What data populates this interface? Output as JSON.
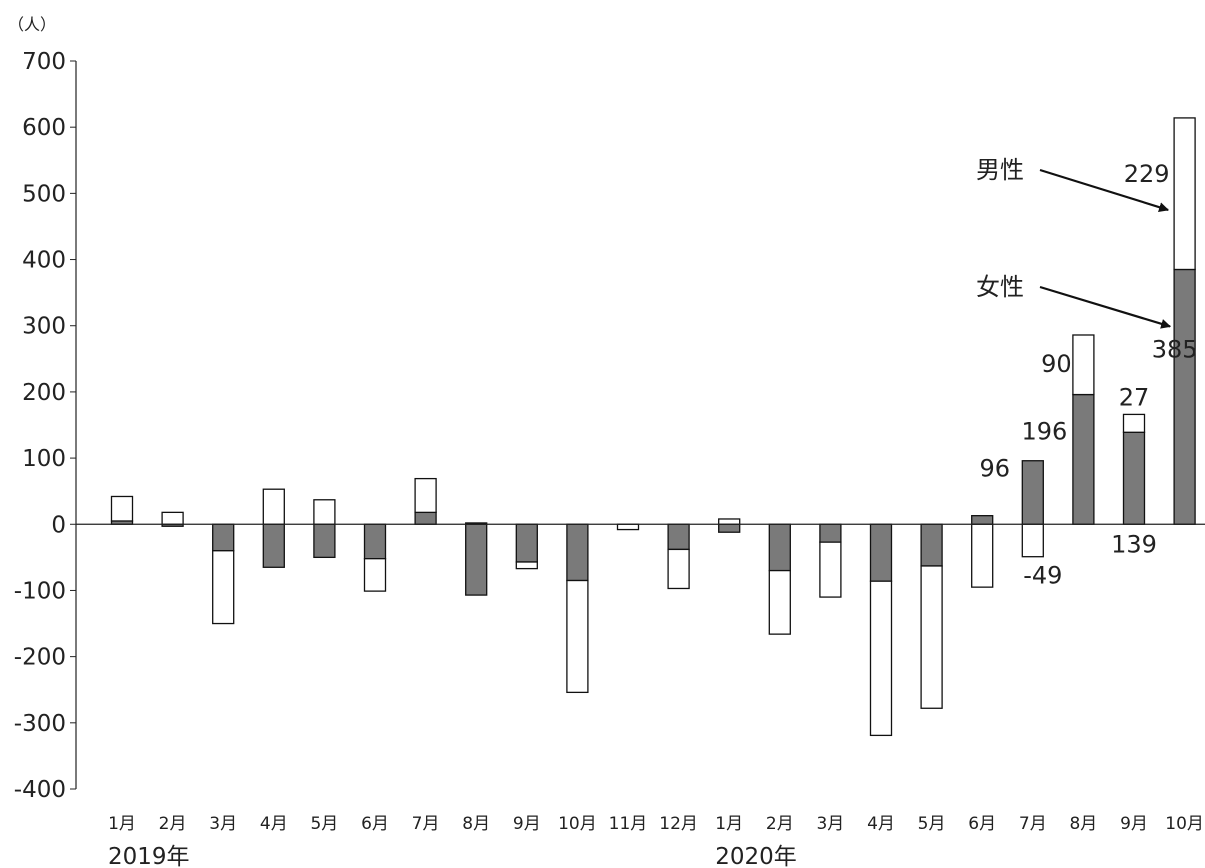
{
  "chart_data": {
    "type": "bar",
    "stacked": true,
    "unit_label": "（人）",
    "ylim": [
      -400,
      700
    ],
    "yticks": [
      "700",
      "600",
      "500",
      "400",
      "300",
      "200",
      "100",
      "0",
      "-100",
      "-200",
      "-300",
      "-400"
    ],
    "categories": [
      "1月",
      "2月",
      "3月",
      "4月",
      "5月",
      "6月",
      "7月",
      "8月",
      "9月",
      "10月",
      "11月",
      "12月",
      "1月",
      "2月",
      "3月",
      "4月",
      "5月",
      "6月",
      "7月",
      "8月",
      "9月",
      "10月"
    ],
    "year_labels": [
      {
        "label": "2019年",
        "start_index": 0
      },
      {
        "label": "2020年",
        "start_index": 12
      }
    ],
    "series": [
      {
        "name": "女性",
        "color": "#7a7a7a",
        "values": [
          5,
          -3,
          -40,
          -65,
          -50,
          -52,
          18,
          -107,
          -57,
          -85,
          0,
          -38,
          -12,
          -70,
          -27,
          -86,
          -63,
          13,
          96,
          196,
          139,
          385
        ]
      },
      {
        "name": "男性",
        "color": "#ffffff",
        "values": [
          37,
          18,
          -110,
          53,
          37,
          -49,
          51,
          2,
          -10,
          -169,
          -8,
          -59,
          8,
          -96,
          -83,
          -233,
          -215,
          -95,
          -49,
          90,
          27,
          229
        ]
      }
    ],
    "data_labels": [
      {
        "text": "96",
        "series": "女性",
        "index": 18
      },
      {
        "text": "-49",
        "series": "男性",
        "index": 18
      },
      {
        "text": "196",
        "series": "女性",
        "index": 19
      },
      {
        "text": "90",
        "series": "男性",
        "index": 19
      },
      {
        "text": "139",
        "series": "女性",
        "index": 20
      },
      {
        "text": "27",
        "series": "男性",
        "index": 20
      },
      {
        "text": "385",
        "series": "女性",
        "index": 21
      },
      {
        "text": "229",
        "series": "男性",
        "index": 21
      }
    ],
    "annotations": [
      {
        "text": "男性",
        "points_to_series": "男性",
        "index": 21
      },
      {
        "text": "女性",
        "points_to_series": "女性",
        "index": 21
      }
    ]
  }
}
